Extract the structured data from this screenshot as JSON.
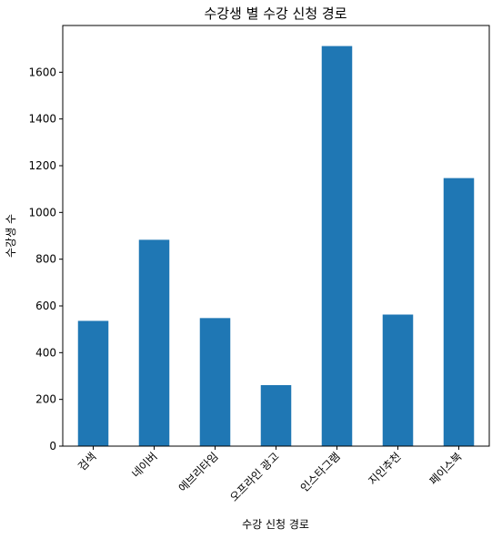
{
  "chart_data": {
    "type": "bar",
    "title": "수강생 별 수강 신청 경로",
    "xlabel": "수강 신청 경로",
    "ylabel": "수강생 수",
    "categories": [
      "검색",
      "네이버",
      "에브리타임",
      "오프라인 광고",
      "인스타그램",
      "지인추천",
      "페이스북"
    ],
    "values": [
      536,
      883,
      548,
      261,
      1712,
      563,
      1147
    ],
    "ylim": [
      0,
      1800
    ],
    "yticks": [
      0,
      200,
      400,
      600,
      800,
      1000,
      1200,
      1400,
      1600
    ],
    "bar_color": "#1f77b4",
    "grid": false,
    "legend": "none"
  }
}
